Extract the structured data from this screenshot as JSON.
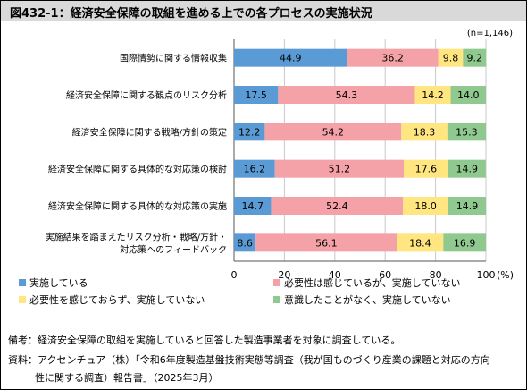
{
  "title": "図432-1：経済安全保障の取組を進める上での各プロセスの実施状況",
  "notes": {
    "biko": "備考：経済安全保障の取組を実施していると回答した製造事業者を対象に調査している。",
    "shiryo_line1": "資料：アクセンチュア（株）「令和6年度製造基盤技術実態等調査（我が国ものづくり産業の課題と対応の方向",
    "shiryo_line2": "性に関する調査）報告書」（2025年3月）"
  },
  "chart_data": {
    "type": "bar",
    "orientation": "horizontal",
    "stacked": true,
    "sample_size": "(n=1,146)",
    "xlim": [
      0,
      100
    ],
    "x_ticks": [
      "0",
      "20",
      "40",
      "60",
      "80",
      "100"
    ],
    "x_unit": "(%)",
    "grid": true,
    "legend_position": "bottom",
    "categories": [
      [
        "国際情勢に関する情報収集"
      ],
      [
        "経済安全保障に関する観点のリスク分析"
      ],
      [
        "経済安全保障に関する戦略/方針の策定"
      ],
      [
        "経済安全保障に関する具体的な対応策の検討"
      ],
      [
        "経済安全保障に関する具体的な対応策の実施"
      ],
      [
        "実施結果を踏まえたリスク分析・戦略/方針・",
        "対応策へのフィードバック"
      ]
    ],
    "series": [
      {
        "name": "実施している",
        "color": "#5b9bd5",
        "values": [
          44.9,
          17.5,
          12.2,
          16.2,
          14.7,
          8.6
        ]
      },
      {
        "name": "必要性は感じているが、実施していない",
        "color": "#f4a1a8",
        "values": [
          36.2,
          54.3,
          54.2,
          51.2,
          52.4,
          56.1
        ]
      },
      {
        "name": "必要性を感じておらず、実施していない",
        "color": "#ffe680",
        "values": [
          9.8,
          14.2,
          18.3,
          17.6,
          18.0,
          18.4
        ]
      },
      {
        "name": "意識したことがなく、実施していない",
        "color": "#8fc98f",
        "values": [
          9.2,
          14.0,
          15.3,
          14.9,
          14.9,
          16.9
        ]
      }
    ]
  }
}
